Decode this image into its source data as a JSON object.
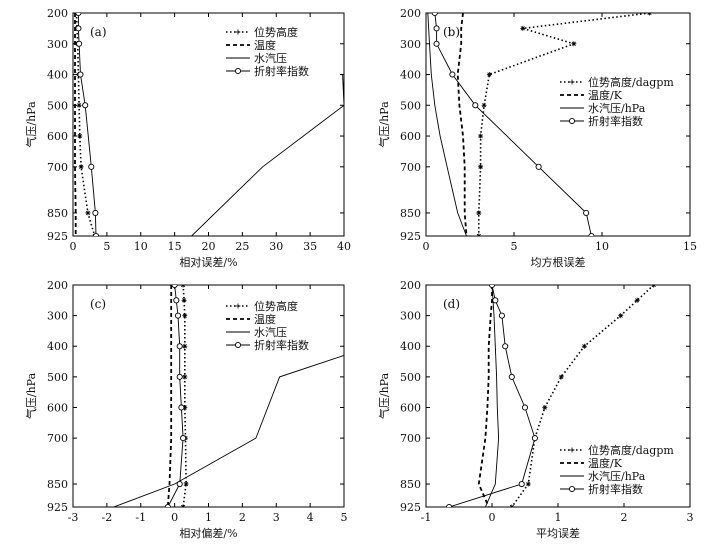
{
  "chart_data": [
    {
      "type": "line",
      "panel_label": "(a)",
      "xlabel": "相对误差/%",
      "ylabel": "气压/hPa",
      "xlim": [
        0,
        40
      ],
      "ylim": [
        925,
        200
      ],
      "xticks": [
        "0",
        "5",
        "10",
        "15",
        "20",
        "25",
        "30",
        "35",
        "40"
      ],
      "yticks": [
        "200",
        "300",
        "400",
        "500",
        "600",
        "700",
        "850",
        "925"
      ],
      "legend": [
        "位势高度",
        "温度",
        "水汽压",
        "折射率指数"
      ],
      "legend_position": "top-right",
      "series": [
        {
          "name": "位势高度",
          "style": "dotted-star",
          "points": [
            [
              0.5,
              200
            ],
            [
              0.6,
              250
            ],
            [
              0.7,
              300
            ],
            [
              0.8,
              400
            ],
            [
              0.9,
              500
            ],
            [
              1.0,
              600
            ],
            [
              1.2,
              700
            ],
            [
              2.2,
              850
            ],
            [
              3.2,
              925
            ]
          ]
        },
        {
          "name": "温度",
          "style": "dashed",
          "points": [
            [
              0.3,
              200
            ],
            [
              0.3,
              250
            ],
            [
              0.3,
              300
            ],
            [
              0.3,
              400
            ],
            [
              0.3,
              500
            ],
            [
              0.3,
              600
            ],
            [
              0.3,
              700
            ],
            [
              0.4,
              850
            ],
            [
              0.4,
              925
            ]
          ]
        },
        {
          "name": "水汽压",
          "style": "solid",
          "points": [
            [
              39.5,
              400
            ],
            [
              39.8,
              400
            ],
            [
              40,
              500
            ],
            [
              28,
              700
            ],
            [
              17.5,
              925
            ]
          ]
        },
        {
          "name": "折射率指数",
          "style": "solid-circle",
          "points": [
            [
              0.8,
              200
            ],
            [
              0.8,
              250
            ],
            [
              0.9,
              300
            ],
            [
              1.1,
              400
            ],
            [
              1.8,
              500
            ],
            [
              2.7,
              700
            ],
            [
              3.3,
              850
            ],
            [
              3.4,
              925
            ]
          ]
        }
      ]
    },
    {
      "type": "line",
      "panel_label": "(b)",
      "xlabel": "均方根误差",
      "ylabel": "气压/hPa",
      "xlim": [
        0,
        15
      ],
      "ylim": [
        925,
        200
      ],
      "xticks": [
        "0",
        "5",
        "10",
        "15"
      ],
      "yticks": [
        "200",
        "300",
        "400",
        "500",
        "600",
        "700",
        "850",
        "925"
      ],
      "legend": [
        "位势高度/dagpm",
        "温度/K",
        "水汽压/hPa",
        "折射率指数"
      ],
      "legend_position": "middle-right",
      "series": [
        {
          "name": "位势高度/dagpm",
          "style": "dotted-star",
          "points": [
            [
              12.7,
              200
            ],
            [
              5.5,
              250
            ],
            [
              8.4,
              300
            ],
            [
              3.6,
              400
            ],
            [
              3.3,
              500
            ],
            [
              3.1,
              600
            ],
            [
              3.1,
              700
            ],
            [
              3.0,
              850
            ],
            [
              3.0,
              925
            ]
          ]
        },
        {
          "name": "温度/K",
          "style": "dashed",
          "points": [
            [
              2.1,
              200
            ],
            [
              2.0,
              250
            ],
            [
              2.0,
              300
            ],
            [
              1.8,
              400
            ],
            [
              1.9,
              500
            ],
            [
              2.1,
              600
            ],
            [
              2.2,
              700
            ],
            [
              2.2,
              850
            ],
            [
              2.3,
              925
            ]
          ]
        },
        {
          "name": "水汽压/hPa",
          "style": "solid",
          "points": [
            [
              0.1,
              200
            ],
            [
              0.2,
              300
            ],
            [
              0.3,
              400
            ],
            [
              0.5,
              500
            ],
            [
              0.8,
              600
            ],
            [
              1.2,
              700
            ],
            [
              1.8,
              850
            ],
            [
              2.3,
              925
            ]
          ]
        },
        {
          "name": "折射率指数",
          "style": "solid-circle",
          "points": [
            [
              0.5,
              200
            ],
            [
              0.6,
              250
            ],
            [
              0.6,
              300
            ],
            [
              1.5,
              400
            ],
            [
              2.8,
              500
            ],
            [
              6.4,
              700
            ],
            [
              9.1,
              850
            ],
            [
              9.4,
              925
            ]
          ]
        }
      ]
    },
    {
      "type": "line",
      "panel_label": "(c)",
      "xlabel": "相对偏差/%",
      "ylabel": "气压/hPa",
      "xlim": [
        -3,
        5
      ],
      "ylim": [
        925,
        200
      ],
      "xticks": [
        "-3",
        "-2",
        "-1",
        "0",
        "1",
        "2",
        "3",
        "4",
        "5"
      ],
      "yticks": [
        "200",
        "300",
        "400",
        "500",
        "600",
        "700",
        "850",
        "925"
      ],
      "legend": [
        "位势高度",
        "温度",
        "水汽压",
        "折射率指数"
      ],
      "legend_position": "top-right",
      "series": [
        {
          "name": "位势高度",
          "style": "dotted-star",
          "points": [
            [
              0.25,
              200
            ],
            [
              0.28,
              250
            ],
            [
              0.3,
              300
            ],
            [
              0.3,
              400
            ],
            [
              0.3,
              500
            ],
            [
              0.3,
              600
            ],
            [
              0.32,
              700
            ],
            [
              0.34,
              850
            ],
            [
              0.25,
              925
            ]
          ]
        },
        {
          "name": "温度",
          "style": "dashed",
          "points": [
            [
              -0.1,
              200
            ],
            [
              -0.1,
              250
            ],
            [
              -0.1,
              300
            ],
            [
              -0.1,
              400
            ],
            [
              -0.1,
              500
            ],
            [
              -0.1,
              600
            ],
            [
              -0.1,
              700
            ],
            [
              -0.15,
              850
            ],
            [
              -0.2,
              925
            ]
          ]
        },
        {
          "name": "水汽压",
          "style": "solid",
          "points": [
            [
              5.0,
              430
            ],
            [
              3.1,
              500
            ],
            [
              2.4,
              700
            ],
            [
              0.0,
              850
            ],
            [
              -1.8,
              925
            ]
          ]
        },
        {
          "name": "折射率指数",
          "style": "solid-circle",
          "points": [
            [
              0.0,
              200
            ],
            [
              0.05,
              250
            ],
            [
              0.1,
              300
            ],
            [
              0.15,
              400
            ],
            [
              0.15,
              500
            ],
            [
              0.2,
              600
            ],
            [
              0.25,
              700
            ],
            [
              0.15,
              850
            ],
            [
              -0.2,
              925
            ]
          ]
        }
      ]
    },
    {
      "type": "line",
      "panel_label": "(d)",
      "xlabel": "平均误差",
      "ylabel": "气压/hPa",
      "xlim": [
        -1,
        3
      ],
      "ylim": [
        925,
        200
      ],
      "xticks": [
        "-1",
        "0",
        "1",
        "2",
        "3"
      ],
      "yticks": [
        "200",
        "300",
        "400",
        "500",
        "600",
        "700",
        "850",
        "925"
      ],
      "legend": [
        "位势高度/dagpm",
        "温度/K",
        "水汽压/hPa",
        "折射率指数"
      ],
      "legend_position": "middle-right",
      "series": [
        {
          "name": "位势高度/dagpm",
          "style": "dotted-star",
          "points": [
            [
              2.45,
              200
            ],
            [
              2.2,
              250
            ],
            [
              1.95,
              300
            ],
            [
              1.4,
              400
            ],
            [
              1.05,
              500
            ],
            [
              0.8,
              600
            ],
            [
              0.65,
              700
            ],
            [
              0.55,
              850
            ],
            [
              0.3,
              925
            ]
          ]
        },
        {
          "name": "温度/K",
          "style": "dashed",
          "points": [
            [
              0.0,
              200
            ],
            [
              0.0,
              250
            ],
            [
              -0.02,
              300
            ],
            [
              -0.05,
              400
            ],
            [
              -0.05,
              500
            ],
            [
              -0.07,
              600
            ],
            [
              -0.1,
              700
            ],
            [
              -0.2,
              850
            ],
            [
              -0.05,
              925
            ]
          ]
        },
        {
          "name": "水汽压/hPa",
          "style": "solid",
          "points": [
            [
              0.0,
              200
            ],
            [
              0.03,
              300
            ],
            [
              0.05,
              400
            ],
            [
              0.07,
              500
            ],
            [
              0.08,
              600
            ],
            [
              0.1,
              700
            ],
            [
              0.05,
              850
            ],
            [
              -0.1,
              925
            ]
          ]
        },
        {
          "name": "折射率指数",
          "style": "solid-circle",
          "points": [
            [
              0.0,
              200
            ],
            [
              0.05,
              250
            ],
            [
              0.15,
              300
            ],
            [
              0.2,
              400
            ],
            [
              0.3,
              500
            ],
            [
              0.5,
              600
            ],
            [
              0.65,
              700
            ],
            [
              0.45,
              850
            ],
            [
              -0.65,
              925
            ]
          ]
        }
      ]
    }
  ]
}
